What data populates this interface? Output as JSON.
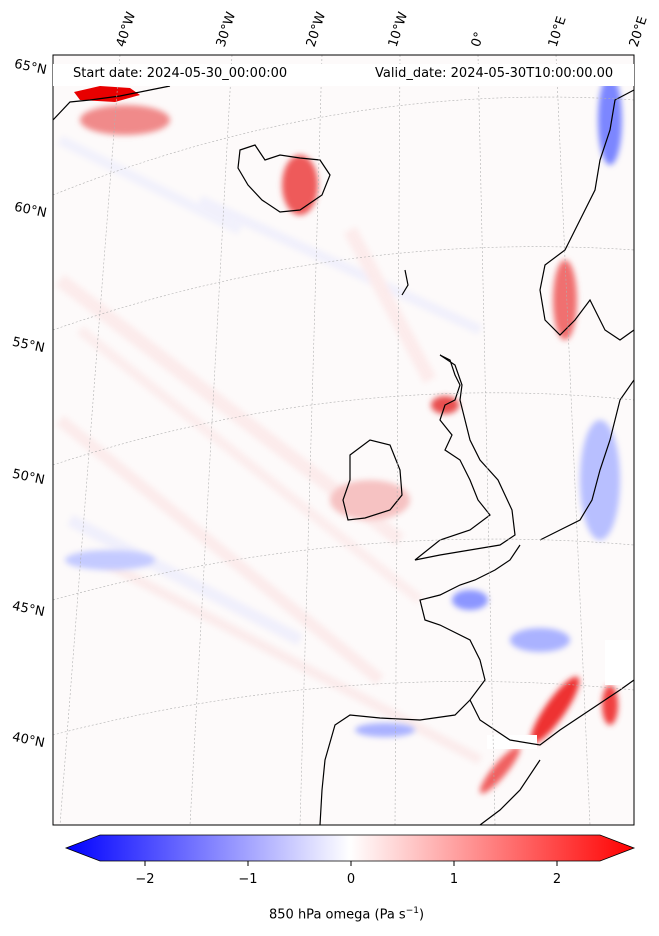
{
  "header": {
    "start_date": "Start date: 2024-05-30_00:00:00",
    "valid_date": "Valid_date: 2024-05-30T10:00:00.00"
  },
  "graticule": {
    "longitude_labels": [
      "40°W",
      "30°W",
      "20°W",
      "10°W",
      "0°",
      "10°E",
      "20°E"
    ],
    "latitude_labels": [
      "65°N",
      "60°N",
      "55°N",
      "50°N",
      "45°N",
      "40°N"
    ]
  },
  "colorbar": {
    "title": "850 hPa omega (Pa s",
    "title_superscript": "−1",
    "title_close": ")",
    "tick_labels": [
      "−2",
      "−1",
      "0",
      "1",
      "2"
    ],
    "min_color": "#0000ff",
    "mid_color": "#ffffff",
    "max_color": "#ff0000",
    "extend": "both"
  },
  "colors": {
    "negative": "#0000ff",
    "positive": "#ff0000",
    "coastline": "#000000",
    "gridline": "#b0b0b0"
  }
}
